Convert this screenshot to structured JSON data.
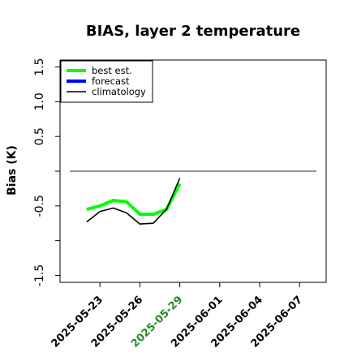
{
  "chart_data": {
    "type": "line",
    "title": "BIAS, layer 2 temperature",
    "xlabel": "",
    "ylabel": "Bias (K)",
    "yticks": [
      -1.5,
      -1.0,
      -0.5,
      0.0,
      0.5,
      1.0,
      1.5
    ],
    "ytick_labels": [
      "-1.5",
      "",
      "-0.5",
      "",
      "0.5",
      "1.0",
      "1.5"
    ],
    "ylim": [
      -1.6,
      1.6
    ],
    "xlim": [
      "2025-05-20",
      "2025-06-09"
    ],
    "xticks": [
      "2025-05-23",
      "2025-05-26",
      "2025-05-29",
      "2025-06-01",
      "2025-06-04",
      "2025-06-07"
    ],
    "xtick_colors": [
      "#000000",
      "#000000",
      "#228B22",
      "#000000",
      "#000000",
      "#000000"
    ],
    "hline": {
      "y": 0.0,
      "color": "#555555"
    },
    "legend": {
      "position": "top-left",
      "entries": [
        "best est.",
        "forecast",
        "climatology"
      ]
    },
    "series": [
      {
        "name": "best est.",
        "color": "#00ff00",
        "x": [
          "2025-05-22",
          "2025-05-23",
          "2025-05-24",
          "2025-05-25",
          "2025-05-26",
          "2025-05-27",
          "2025-05-28",
          "2025-05-29"
        ],
        "values": [
          -0.55,
          -0.5,
          -0.42,
          -0.44,
          -0.62,
          -0.62,
          -0.55,
          -0.18
        ]
      },
      {
        "name": "forecast",
        "color": "#0000ff",
        "x": [],
        "values": []
      },
      {
        "name": "climatology",
        "color": "#000000",
        "x": [
          "2025-05-22",
          "2025-05-23",
          "2025-05-24",
          "2025-05-25",
          "2025-05-26",
          "2025-05-27",
          "2025-05-28",
          "2025-05-29"
        ],
        "values": [
          -0.73,
          -0.58,
          -0.53,
          -0.6,
          -0.76,
          -0.75,
          -0.55,
          -0.1
        ]
      }
    ]
  }
}
